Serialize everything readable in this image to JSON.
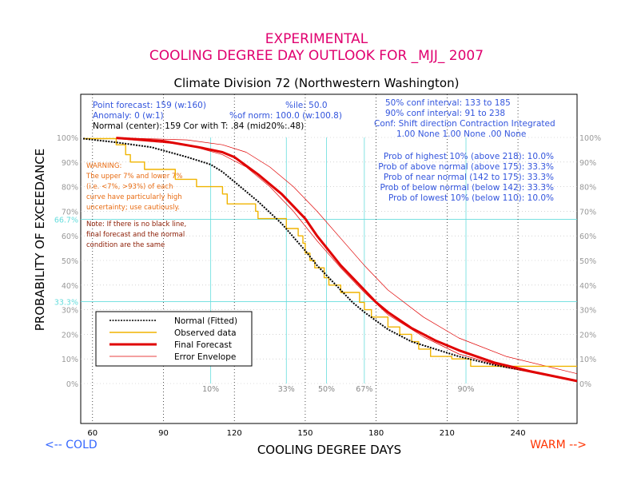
{
  "title": {
    "line1": "EXPERIMENTAL",
    "line2": "COOLING DEGREE DAY OUTLOOK FOR _MJJ_ 2007",
    "subtitle": "Climate Division 72 (Northwestern Washington)"
  },
  "info": {
    "point_forecast": "Point forecast: 159 (w:160)",
    "anomaly": "Anomaly: 0 (w:1)",
    "normal_center": "Normal (center): 159  Cor with T: .84 (mid20%:.48)",
    "pct_norm": "%of norm:  100.0 (w:100.8)",
    "pctile": "%ile: 50.0",
    "conf50": "50% conf interval: 133 to 185",
    "conf90": "90% conf interval: 91 to 238",
    "conf_header": "Conf: Shift direction   Contraction   Integrated",
    "conf_values": "1.00 None          1.00 None   .00 None"
  },
  "probs": [
    "Prob of highest 10% (above 218): 10.0%",
    "Prob of above normal (above 175): 33.3%",
    "Prob of near normal (142 to 175): 33.3%",
    "Prob of below normal (below 142): 33.3%",
    "Prob of lowest 10% (below 110): 10.0%"
  ],
  "warning": {
    "lines": [
      "WARNING:",
      "The upper 7% and lower 7%",
      "(i.e. <7%, >93%) of each",
      "curve have particularly high",
      "uncertainty; use cautiously."
    ],
    "note_lines": [
      "Note: If there is no black line,",
      "final forecast and  the normal",
      "condition are the same"
    ]
  },
  "legend": {
    "normal": "Normal (Fitted)",
    "observed": "Observed data",
    "forecast": "Final Forecast",
    "envelope": "Error Envelope"
  },
  "labels": {
    "ylabel": "PROBABILITY OF EXCEEDANCE",
    "xlabel": "COOLING DEGREE DAYS",
    "cold": "<-- COLD",
    "warm": "WARM -->"
  },
  "colors": {
    "title": "#e0006f",
    "blue_text": "#3355dd",
    "warning": "#e86a10",
    "note": "#8b1a00",
    "grid": "#66dddd",
    "normal": "#000000",
    "observed": "#f0b400",
    "forecast": "#e00000",
    "envelope": "#e00000",
    "cold": "#3366ff",
    "warm": "#ff3300"
  },
  "chart_data": {
    "type": "line",
    "xlim": [
      55,
      265
    ],
    "ylim": [
      0,
      100
    ],
    "x_ticks": [
      60,
      90,
      120,
      150,
      180,
      210,
      240
    ],
    "y_ticks": [
      "0%",
      "10%",
      "20%",
      "30%",
      "40%",
      "50%",
      "60%",
      "70%",
      "80%",
      "90%",
      "100%"
    ],
    "y_tick_values": [
      0,
      10,
      20,
      30,
      40,
      50,
      60,
      70,
      80,
      90,
      100
    ],
    "y_special": [
      {
        "label": "66.7%",
        "value": 66.7
      },
      {
        "label": "33.3%",
        "value": 33.3
      }
    ],
    "percentile_markers": [
      {
        "label": "10%",
        "x": 110
      },
      {
        "label": "33%",
        "x": 142
      },
      {
        "label": "50%",
        "x": 159
      },
      {
        "label": "67%",
        "x": 175
      },
      {
        "label": "90%",
        "x": 218
      }
    ],
    "series": [
      {
        "name": "Normal (Fitted)",
        "x": [
          56,
          70,
          85,
          100,
          110,
          115,
          120,
          130,
          140,
          150,
          155,
          160,
          165,
          170,
          175,
          185,
          195,
          205,
          215,
          230,
          245,
          265
        ],
        "y": [
          99.5,
          98,
          96,
          92,
          89,
          86,
          82,
          74,
          65,
          54,
          48,
          43,
          38,
          33,
          29,
          22,
          17,
          14,
          11,
          7.5,
          5,
          1
        ]
      },
      {
        "name": "Observed data",
        "x": [
          56,
          70,
          70,
          74,
          74,
          76,
          76,
          82,
          82,
          95,
          95,
          104,
          104,
          115,
          115,
          117,
          117,
          129,
          129,
          130,
          130,
          142,
          142,
          147,
          147,
          149,
          149,
          150,
          150,
          152,
          152,
          154,
          154,
          158,
          158,
          160,
          160,
          165,
          165,
          173,
          173,
          175,
          175,
          178,
          178,
          185,
          185,
          190,
          190,
          195,
          195,
          198,
          198,
          203,
          203,
          212,
          212,
          220,
          220,
          250,
          250,
          265
        ],
        "y": [
          99.5,
          99.5,
          97,
          97,
          93,
          93,
          90,
          90,
          87,
          87,
          83,
          83,
          80,
          80,
          77,
          77,
          73,
          73,
          70,
          70,
          67,
          67,
          63,
          63,
          60,
          60,
          57,
          57,
          53,
          53,
          50,
          50,
          47,
          47,
          43,
          43,
          40,
          40,
          37,
          37,
          33,
          33,
          30,
          30,
          27,
          27,
          23,
          23,
          20,
          20,
          17,
          17,
          14,
          14,
          11,
          11,
          10,
          10,
          7,
          7,
          7,
          7
        ]
      },
      {
        "name": "Final Forecast",
        "x": [
          70,
          90,
          105,
          115,
          120,
          130,
          140,
          150,
          155,
          160,
          165,
          170,
          175,
          180,
          185,
          195,
          205,
          215,
          230,
          245,
          265
        ],
        "y": [
          99.8,
          98.5,
          96,
          94,
          92,
          85,
          77,
          67,
          60,
          54,
          48,
          43,
          38,
          33,
          29,
          22.5,
          17.5,
          13.5,
          8.5,
          5,
          1
        ]
      },
      {
        "name": "Error Envelope (upper)",
        "x": [
          70,
          100,
          115,
          125,
          135,
          145,
          155,
          165,
          175,
          185,
          200,
          215,
          235,
          265
        ],
        "y": [
          99.9,
          99,
          97,
          94,
          88,
          80,
          70,
          59,
          48,
          38,
          27,
          18.5,
          11,
          4
        ]
      },
      {
        "name": "Error Envelope (lower)",
        "x": [
          70,
          100,
          115,
          125,
          135,
          145,
          155,
          165,
          175,
          185,
          200,
          215,
          235,
          265
        ],
        "y": [
          99.5,
          97,
          93,
          88,
          80,
          70,
          58,
          47,
          37,
          28,
          19,
          12,
          6.5,
          0.8
        ]
      }
    ]
  }
}
